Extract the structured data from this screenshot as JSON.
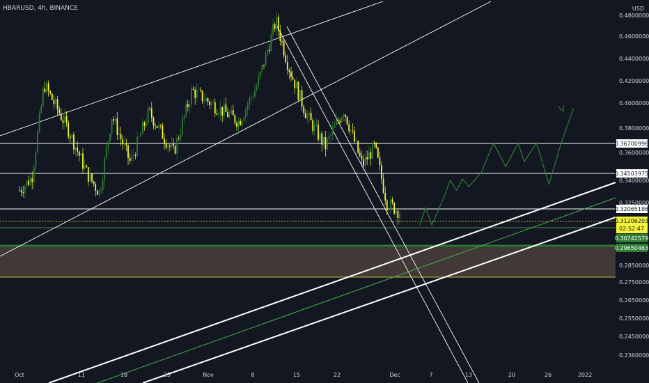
{
  "header": {
    "title": "HBARUSD, 4h, BINANCE",
    "unit": "USD"
  },
  "colors": {
    "background": "#131722",
    "candle_up": "#2e7d32",
    "candle_down": "#f5f53b",
    "white_lines": "#ffffff",
    "green_lines": "#4caf50",
    "zone": "#4a3f3a",
    "price_tag": "#f5f53b",
    "support_tag": "#2e7d32"
  },
  "chart_data": {
    "type": "candlestick",
    "title": "HBARUSD, 4h, BINANCE",
    "xlabel": "",
    "ylabel": "USD",
    "ylim": [
      0.2315,
      0.4885
    ],
    "x_ticks": [
      "Oct",
      "11",
      "18",
      "25",
      "Nov",
      "8",
      "15",
      "22",
      "Dec",
      "7",
      "13",
      "20",
      "26",
      "2022"
    ],
    "y_ticks": [
      "0.48000000",
      "0.46000000",
      "0.44000000",
      "0.42000000",
      "0.40000000",
      "0.38000000",
      "0.36000000",
      "0.34000000",
      "0.32500000",
      "0.28500000",
      "0.27500000",
      "0.26500000",
      "0.25500000",
      "0.24500000",
      "0.23600000"
    ],
    "price_path": [
      {
        "x": "Oct 1",
        "y": 0.33
      },
      {
        "x": "Oct 3",
        "y": 0.34
      },
      {
        "x": "Oct 5",
        "y": 0.415
      },
      {
        "x": "Oct 9",
        "y": 0.378
      },
      {
        "x": "Oct 12",
        "y": 0.343
      },
      {
        "x": "Oct 14",
        "y": 0.328
      },
      {
        "x": "Oct 16",
        "y": 0.39
      },
      {
        "x": "Oct 19",
        "y": 0.352
      },
      {
        "x": "Oct 22",
        "y": 0.393
      },
      {
        "x": "Oct 26",
        "y": 0.36
      },
      {
        "x": "Oct 29",
        "y": 0.41
      },
      {
        "x": "Nov 2",
        "y": 0.398
      },
      {
        "x": "Nov 6",
        "y": 0.385
      },
      {
        "x": "Nov 9",
        "y": 0.415
      },
      {
        "x": "Nov 12",
        "y": 0.466
      },
      {
        "x": "Nov 14",
        "y": 0.43
      },
      {
        "x": "Nov 17",
        "y": 0.39
      },
      {
        "x": "Nov 20",
        "y": 0.365
      },
      {
        "x": "Nov 23",
        "y": 0.395
      },
      {
        "x": "Nov 26",
        "y": 0.35
      },
      {
        "x": "Nov 28",
        "y": 0.365
      },
      {
        "x": "Nov 30",
        "y": 0.32
      },
      {
        "x": "Dec 2",
        "y": 0.312
      }
    ],
    "horizontal_levels": [
      {
        "label": "0.36700996",
        "value": 0.36700996
      },
      {
        "label": "0.34503975",
        "value": 0.34503975
      },
      {
        "label": "0.32065186",
        "value": 0.32065186
      },
      {
        "label": "0.30742579",
        "value": 0.30742579
      },
      {
        "label": "0.29650463",
        "value": 0.29650463
      }
    ],
    "current_price": {
      "label": "0.31206203",
      "value": 0.31206203,
      "countdown": "02:52:47"
    },
    "zone": {
      "top": 0.2955,
      "bottom": 0.278
    },
    "projection": [
      {
        "x": "Dec 5",
        "y": 0.302
      },
      {
        "x": "Dec 6",
        "y": 0.316
      },
      {
        "x": "Dec 7",
        "y": 0.302
      },
      {
        "x": "Dec 9",
        "y": 0.325
      },
      {
        "x": "Dec 10",
        "y": 0.338
      },
      {
        "x": "Dec 11",
        "y": 0.33
      },
      {
        "x": "Dec 12",
        "y": 0.339
      },
      {
        "x": "Dec 13",
        "y": 0.333
      },
      {
        "x": "Dec 15",
        "y": 0.344
      },
      {
        "x": "Dec 17",
        "y": 0.368
      },
      {
        "x": "Dec 19",
        "y": 0.349
      },
      {
        "x": "Dec 21",
        "y": 0.368
      },
      {
        "x": "Dec 22",
        "y": 0.353
      },
      {
        "x": "Dec 24",
        "y": 0.368
      },
      {
        "x": "Dec 26",
        "y": 0.335
      },
      {
        "x": "Dec 28",
        "y": 0.368
      },
      {
        "x": "Dec 30",
        "y": 0.396
      }
    ],
    "grid": false
  }
}
